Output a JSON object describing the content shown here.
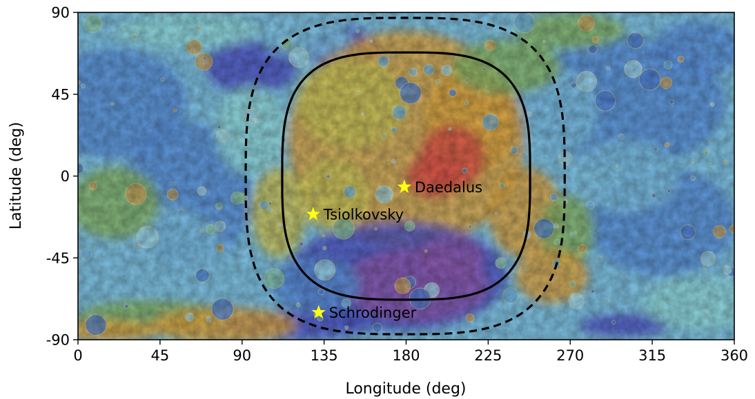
{
  "chart_data": {
    "type": "scatter",
    "title": "",
    "xlabel": "Longitude (deg)",
    "ylabel": "Latitude (deg)",
    "xlim": [
      0,
      360
    ],
    "ylim": [
      -90,
      90
    ],
    "xticks": [
      0,
      45,
      90,
      135,
      180,
      225,
      270,
      315,
      360
    ],
    "yticks": [
      90,
      45,
      0,
      -45,
      -90
    ],
    "xtick_labels": [
      "0",
      "45",
      "90",
      "135",
      "180",
      "225",
      "270",
      "315",
      "360"
    ],
    "ytick_labels": [
      "90",
      "45",
      "0",
      "-45",
      "-90"
    ],
    "grid": false,
    "background": "lunar topographic color map (elevation shaded, far side centered near 180 deg)",
    "sites": [
      {
        "name": "Daedalus",
        "lon": 179,
        "lat": -6,
        "marker": "star",
        "color": "#ffff1a"
      },
      {
        "name": "Tsiolkovsky",
        "lon": 129,
        "lat": -21,
        "marker": "star",
        "color": "#ffff1a"
      },
      {
        "name": "Schrodinger",
        "lon": 132,
        "lat": -75,
        "marker": "star",
        "color": "#ffff1a"
      }
    ],
    "boundaries": [
      {
        "style": "solid",
        "color": "#000000",
        "lon_range": [
          112,
          248
        ],
        "lat_range": [
          -68,
          68
        ]
      },
      {
        "style": "dashed",
        "color": "#000000",
        "lon_range": [
          92,
          267
        ],
        "lat_range": [
          -87,
          87
        ]
      }
    ]
  },
  "palette": {
    "deep_blue": "#4f56c4",
    "blue": "#5a8fd8",
    "light_blue": "#7ec0e0",
    "cyan": "#8fd6da",
    "green": "#86b56a",
    "yellow_green": "#c9c25a",
    "orange": "#d9a444",
    "red": "#d8564a",
    "purple": "#8c5bb0"
  }
}
